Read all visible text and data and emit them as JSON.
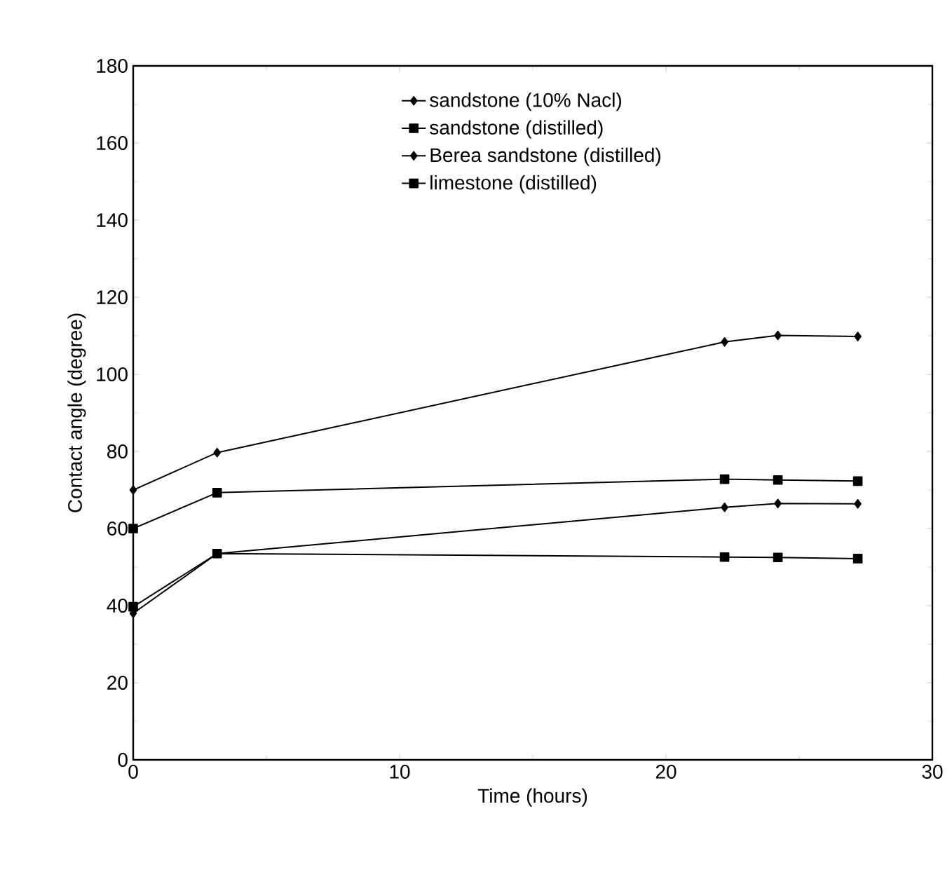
{
  "chart_data": {
    "type": "line",
    "xlabel": "Time (hours)",
    "ylabel": "Contact angle (degree)",
    "xlim": [
      0,
      30
    ],
    "xticks": [
      0,
      10,
      20,
      30
    ],
    "ylim": [
      0,
      180
    ],
    "yticks": [
      0,
      20,
      40,
      60,
      80,
      100,
      120,
      140,
      160,
      180
    ],
    "legend": "top",
    "grid": false,
    "series": [
      {
        "name": "sandstone (10% Nacl)",
        "color": "#000000",
        "marker": "diamond",
        "x": [
          0,
          3.15,
          22.2,
          24.2,
          27.2
        ],
        "values": [
          70,
          79.7,
          108.4,
          110.1,
          109.8
        ]
      },
      {
        "name": "sandstone (distilled)",
        "color": "#000000",
        "marker": "square",
        "x": [
          0,
          3.15,
          22.2,
          24.2,
          27.2
        ],
        "values": [
          60,
          69.3,
          72.8,
          72.6,
          72.3
        ]
      },
      {
        "name": "Berea sandstone (distilled)",
        "color": "#000000",
        "marker": "diamond",
        "x": [
          0,
          3.15,
          22.2,
          24.2,
          27.2
        ],
        "values": [
          38,
          53.5,
          65.5,
          66.5,
          66.4
        ]
      },
      {
        "name": "limestone (distilled)",
        "color": "#000000",
        "marker": "square",
        "x": [
          0,
          3.15,
          22.2,
          24.2,
          27.2
        ],
        "values": [
          39.7,
          53.5,
          52.6,
          52.5,
          52.2
        ]
      }
    ]
  }
}
